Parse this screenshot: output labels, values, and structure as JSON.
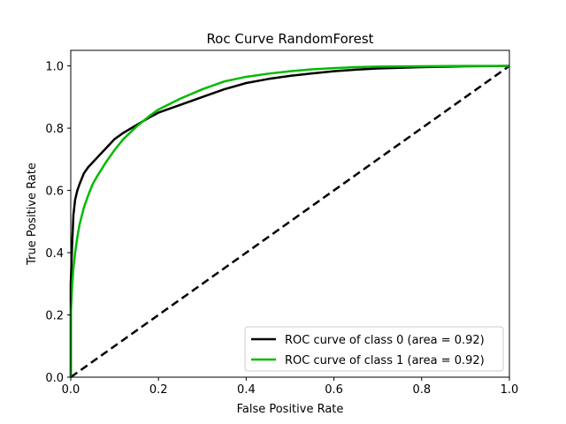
{
  "chart_data": {
    "type": "line",
    "title": "Roc Curve RandomForest",
    "xlabel": "False Positive Rate",
    "ylabel": "True Positive Rate",
    "xlim": [
      0.0,
      1.0
    ],
    "ylim": [
      0.0,
      1.05
    ],
    "xticks": [
      0.0,
      0.2,
      0.4,
      0.6,
      0.8,
      1.0
    ],
    "yticks": [
      0.0,
      0.2,
      0.4,
      0.6,
      0.8,
      1.0
    ],
    "xtick_labels": [
      "0.0",
      "0.2",
      "0.4",
      "0.6",
      "0.8",
      "1.0"
    ],
    "ytick_labels": [
      "0.0",
      "0.2",
      "0.4",
      "0.6",
      "0.8",
      "1.0"
    ],
    "grid": false,
    "legend_position": "lower-right",
    "series": [
      {
        "name": "ROC curve of class 0 (area = 0.92)",
        "color": "#000000",
        "style": "solid",
        "x": [
          0.0,
          0.0,
          0.003,
          0.006,
          0.01,
          0.015,
          0.02,
          0.03,
          0.04,
          0.05,
          0.06,
          0.08,
          0.1,
          0.12,
          0.15,
          0.18,
          0.2,
          0.25,
          0.3,
          0.35,
          0.4,
          0.45,
          0.5,
          0.55,
          0.6,
          0.65,
          0.7,
          0.8,
          0.9,
          1.0
        ],
        "y": [
          0.0,
          0.3,
          0.42,
          0.52,
          0.57,
          0.6,
          0.62,
          0.655,
          0.675,
          0.69,
          0.705,
          0.735,
          0.765,
          0.785,
          0.81,
          0.835,
          0.85,
          0.875,
          0.9,
          0.925,
          0.945,
          0.958,
          0.968,
          0.976,
          0.983,
          0.988,
          0.992,
          0.996,
          0.999,
          1.0
        ]
      },
      {
        "name": "ROC curve of class 1 (area = 0.92)",
        "color": "#00bb00",
        "style": "solid",
        "x": [
          0.0,
          0.0,
          0.003,
          0.006,
          0.01,
          0.015,
          0.02,
          0.03,
          0.04,
          0.05,
          0.06,
          0.08,
          0.1,
          0.12,
          0.15,
          0.18,
          0.2,
          0.25,
          0.3,
          0.35,
          0.4,
          0.45,
          0.5,
          0.55,
          0.6,
          0.65,
          0.7,
          0.8,
          0.9,
          1.0
        ],
        "y": [
          0.0,
          0.2,
          0.29,
          0.35,
          0.4,
          0.45,
          0.49,
          0.545,
          0.585,
          0.62,
          0.645,
          0.69,
          0.73,
          0.765,
          0.805,
          0.84,
          0.86,
          0.895,
          0.925,
          0.95,
          0.965,
          0.975,
          0.983,
          0.989,
          0.993,
          0.996,
          0.998,
          0.999,
          1.0,
          1.0
        ]
      },
      {
        "name": "",
        "color": "#000000",
        "style": "dashed",
        "x": [
          0.0,
          1.0
        ],
        "y": [
          0.0,
          1.0
        ]
      }
    ]
  }
}
